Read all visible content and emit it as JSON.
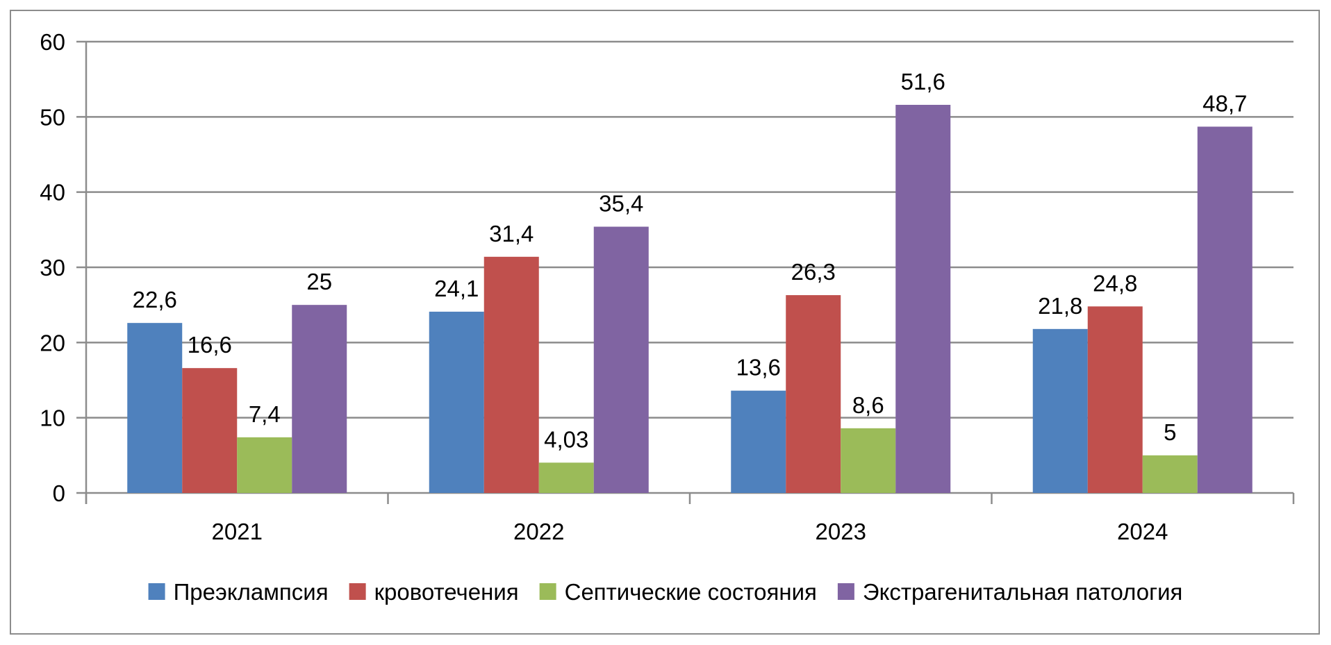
{
  "chart_data": {
    "type": "bar",
    "categories": [
      "2021",
      "2022",
      "2023",
      "2024"
    ],
    "series": [
      {
        "name": "Преэклампсия",
        "color": "#4F81BD",
        "values": [
          22.6,
          24.1,
          13.6,
          21.8
        ],
        "labels": [
          "22,6",
          "24,1",
          "13,6",
          "21,8"
        ]
      },
      {
        "name": "кровотечения",
        "color": "#C0504D",
        "values": [
          16.6,
          31.4,
          26.3,
          24.8
        ],
        "labels": [
          "16,6",
          "31,4",
          "26,3",
          "24,8"
        ]
      },
      {
        "name": "Септические состояния",
        "color": "#9BBB59",
        "values": [
          7.4,
          4.03,
          8.6,
          5
        ],
        "labels": [
          "7,4",
          "4,03",
          "8,6",
          "5"
        ]
      },
      {
        "name": "Экстрагенитальная патология",
        "color": "#8064A2",
        "values": [
          25,
          35.4,
          51.6,
          48.7
        ],
        "labels": [
          "25",
          "35,4",
          "51,6",
          "48,7"
        ]
      }
    ],
    "ylim": [
      0,
      60
    ],
    "yticks": [
      "0",
      "10",
      "20",
      "30",
      "40",
      "50",
      "60"
    ],
    "grid": true,
    "legend_position": "bottom",
    "title": "",
    "xlabel": "",
    "ylabel": ""
  }
}
